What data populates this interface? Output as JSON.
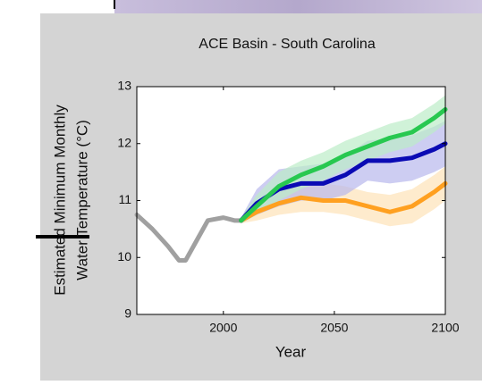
{
  "chart_data": {
    "type": "line",
    "title": "ACE Basin - South Carolina",
    "xlabel": "Year",
    "ylabel": [
      "Estimated Minimum Monthly",
      "Water Temperature (°C)"
    ],
    "xlim": [
      1961,
      2100
    ],
    "ylim": [
      9,
      13
    ],
    "xticks": [
      2000,
      2050,
      2100
    ],
    "yticks": [
      9,
      10,
      11,
      12,
      13
    ],
    "series": [
      {
        "color": "#a0a0a0",
        "x": [
          1961,
          1968,
          1975,
          1980,
          1983,
          1988,
          1993,
          2000,
          2005,
          2008
        ],
        "values": [
          10.75,
          10.5,
          10.2,
          9.95,
          9.95,
          10.3,
          10.65,
          10.7,
          10.65,
          10.65
        ]
      },
      {
        "color": "#ffa020",
        "band_color": "#fde2b8",
        "x": [
          2008,
          2015,
          2025,
          2035,
          2045,
          2055,
          2065,
          2075,
          2085,
          2095,
          2100
        ],
        "values": [
          10.65,
          10.8,
          10.95,
          11.05,
          11.0,
          11.0,
          10.9,
          10.8,
          10.9,
          11.15,
          11.3
        ],
        "lower": [
          10.6,
          10.65,
          10.75,
          10.8,
          10.8,
          10.75,
          10.65,
          10.55,
          10.6,
          10.85,
          11.0
        ],
        "upper": [
          10.7,
          10.95,
          11.15,
          11.3,
          11.3,
          11.25,
          11.15,
          11.1,
          11.2,
          11.45,
          11.6
        ]
      },
      {
        "color": "#0a0ab4",
        "band_color": "#b8b8ec",
        "x": [
          2008,
          2015,
          2025,
          2035,
          2045,
          2055,
          2065,
          2075,
          2085,
          2095,
          2100
        ],
        "values": [
          10.65,
          10.95,
          11.2,
          11.3,
          11.3,
          11.45,
          11.7,
          11.7,
          11.75,
          11.9,
          12.0
        ],
        "lower": [
          10.6,
          10.75,
          10.9,
          11.0,
          11.0,
          11.1,
          11.35,
          11.3,
          11.35,
          11.5,
          11.6
        ],
        "upper": [
          10.7,
          11.2,
          11.55,
          11.6,
          11.65,
          11.8,
          12.05,
          12.1,
          12.15,
          12.3,
          12.4
        ]
      },
      {
        "color": "#28c850",
        "band_color": "#bcecc8",
        "x": [
          2008,
          2015,
          2025,
          2035,
          2045,
          2055,
          2065,
          2075,
          2085,
          2095,
          2100
        ],
        "values": [
          10.65,
          10.9,
          11.25,
          11.45,
          11.6,
          11.8,
          11.95,
          12.1,
          12.2,
          12.45,
          12.6
        ],
        "lower": [
          10.6,
          10.75,
          11.0,
          11.2,
          11.35,
          11.55,
          11.7,
          11.85,
          11.95,
          12.2,
          12.35
        ],
        "upper": [
          10.7,
          11.1,
          11.5,
          11.7,
          11.85,
          12.05,
          12.2,
          12.35,
          12.45,
          12.7,
          12.85
        ]
      }
    ]
  }
}
